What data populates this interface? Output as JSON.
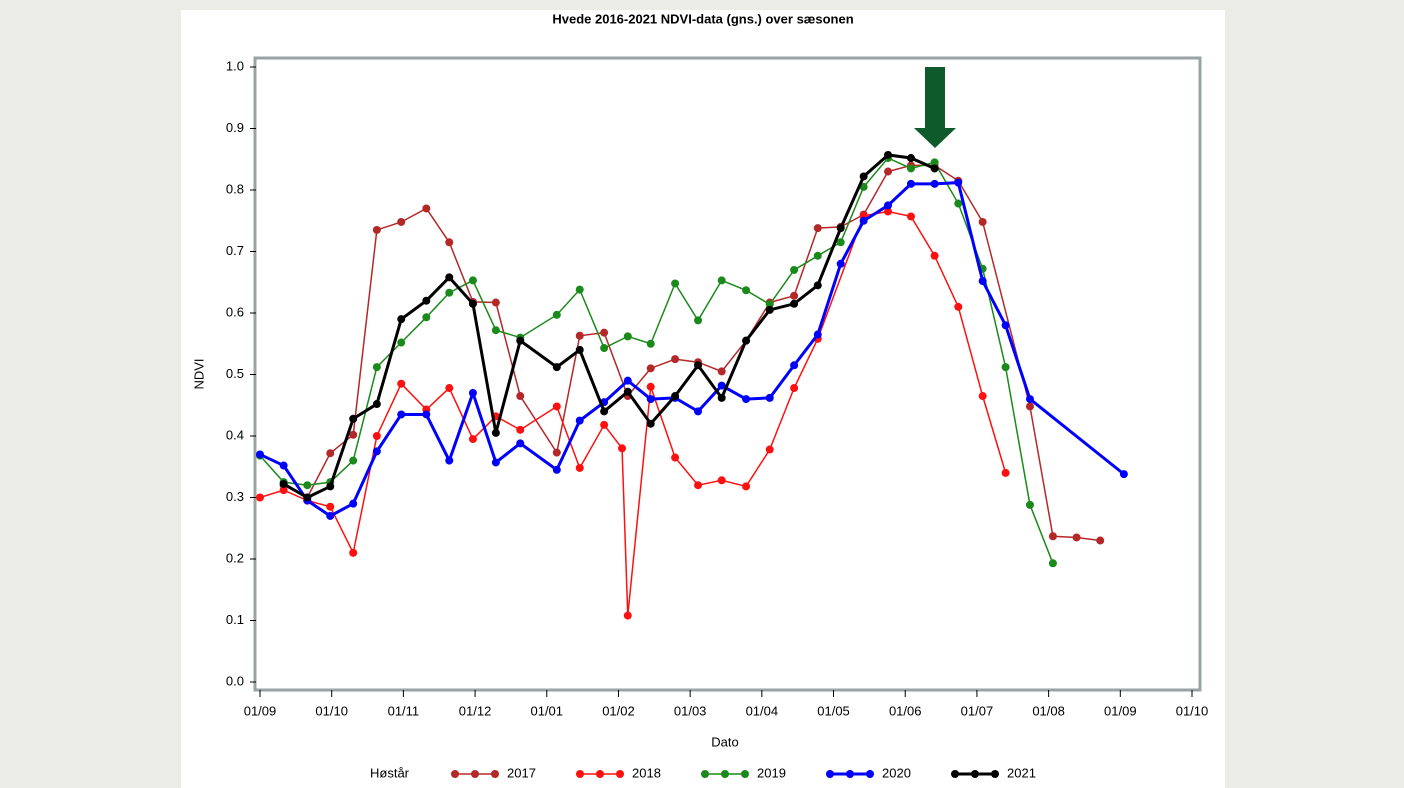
{
  "chart_data": {
    "type": "line",
    "title": "Hvede 2016-2021 NDVI-data (gns.) over sæsonen",
    "x_label": "Dato",
    "y_label": "NDVI",
    "legend_title": "Høstår",
    "xlim": [
      0,
      13
    ],
    "xticks": [
      {
        "value": 0,
        "label": "01/09"
      },
      {
        "value": 1,
        "label": "01/10"
      },
      {
        "value": 2,
        "label": "01/11"
      },
      {
        "value": 3,
        "label": "01/12"
      },
      {
        "value": 4,
        "label": "01/01"
      },
      {
        "value": 5,
        "label": "01/02"
      },
      {
        "value": 6,
        "label": "01/03"
      },
      {
        "value": 7,
        "label": "01/04"
      },
      {
        "value": 8,
        "label": "01/05"
      },
      {
        "value": 9,
        "label": "01/06"
      },
      {
        "value": 10,
        "label": "01/07"
      },
      {
        "value": 11,
        "label": "01/08"
      },
      {
        "value": 12,
        "label": "01/09"
      },
      {
        "value": 13,
        "label": "01/10"
      }
    ],
    "ylim": [
      0,
      1
    ],
    "yticks": [
      {
        "value": 0,
        "label": "0.0"
      },
      {
        "value": 0.1,
        "label": "0.1"
      },
      {
        "value": 0.2,
        "label": "0.2"
      },
      {
        "value": 0.3,
        "label": "0.3"
      },
      {
        "value": 0.4,
        "label": "0.4"
      },
      {
        "value": 0.5,
        "label": "0.5"
      },
      {
        "value": 0.6,
        "label": "0.6"
      },
      {
        "value": 0.7,
        "label": "0.7"
      },
      {
        "value": 0.8,
        "label": "0.8"
      },
      {
        "value": 0.9,
        "label": "0.9"
      },
      {
        "value": 1,
        "label": "1.0"
      }
    ],
    "series": [
      {
        "name": "2017",
        "color": "#b52828",
        "width": 1.5,
        "x": [
          0.33,
          0.66,
          0.98,
          1.3,
          1.63,
          1.97,
          2.32,
          2.64,
          2.97,
          3.29,
          3.63,
          4.14,
          4.46,
          4.8,
          5.13,
          5.45,
          5.79,
          6.11,
          6.44,
          6.78,
          7.11,
          7.45,
          7.78,
          8.1,
          8.42,
          8.76,
          9.08,
          9.41,
          9.74,
          10.08,
          10.74,
          11.06,
          11.39,
          11.72
        ],
        "values": [
          0.32,
          0.3,
          0.372,
          0.402,
          0.735,
          0.748,
          0.77,
          0.715,
          0.618,
          0.617,
          0.465,
          0.373,
          0.563,
          0.568,
          0.465,
          0.51,
          0.525,
          0.52,
          0.505,
          0.555,
          0.617,
          0.628,
          0.738,
          0.74,
          0.76,
          0.83,
          0.84,
          0.84,
          0.815,
          0.748,
          0.448,
          0.237,
          0.235,
          0.23
        ]
      },
      {
        "name": "2018",
        "color": "#ff1010",
        "width": 1.5,
        "x": [
          0,
          0.33,
          0.66,
          0.98,
          1.3,
          1.63,
          1.97,
          2.32,
          2.64,
          2.97,
          3.29,
          3.63,
          4.14,
          4.46,
          4.8,
          5.05,
          5.13,
          5.45,
          5.79,
          6.11,
          6.44,
          6.78,
          7.11,
          7.45,
          7.78,
          8.42,
          8.76,
          9.08,
          9.41,
          9.74,
          10.08,
          10.4
        ],
        "values": [
          0.3,
          0.312,
          0.295,
          0.285,
          0.21,
          0.4,
          0.485,
          0.443,
          0.478,
          0.395,
          0.432,
          0.41,
          0.448,
          0.348,
          0.418,
          0.38,
          0.108,
          0.48,
          0.365,
          0.32,
          0.328,
          0.318,
          0.378,
          0.478,
          0.558,
          0.758,
          0.765,
          0.757,
          0.693,
          0.61,
          0.465,
          0.34
        ]
      },
      {
        "name": "2019",
        "color": "#1a8a1a",
        "width": 1.5,
        "x": [
          0,
          0.33,
          0.66,
          0.98,
          1.3,
          1.63,
          1.97,
          2.32,
          2.64,
          2.97,
          3.29,
          3.63,
          4.14,
          4.46,
          4.8,
          5.13,
          5.45,
          5.79,
          6.11,
          6.44,
          6.78,
          7.11,
          7.45,
          7.78,
          8.1,
          8.42,
          8.76,
          9.08,
          9.41,
          9.74,
          10.08,
          10.4,
          10.74,
          11.06
        ],
        "values": [
          0.368,
          0.325,
          0.32,
          0.325,
          0.36,
          0.512,
          0.552,
          0.593,
          0.633,
          0.653,
          0.572,
          0.56,
          0.597,
          0.638,
          0.543,
          0.562,
          0.55,
          0.648,
          0.588,
          0.653,
          0.637,
          0.614,
          0.67,
          0.693,
          0.715,
          0.805,
          0.852,
          0.835,
          0.845,
          0.778,
          0.672,
          0.512,
          0.288,
          0.193
        ]
      },
      {
        "name": "2020",
        "color": "#0000ff",
        "width": 3,
        "x": [
          0,
          0.33,
          0.66,
          0.98,
          1.3,
          1.63,
          1.97,
          2.32,
          2.64,
          2.97,
          3.29,
          3.63,
          4.14,
          4.46,
          4.8,
          5.13,
          5.45,
          5.79,
          6.11,
          6.44,
          6.78,
          7.11,
          7.45,
          7.78,
          8.1,
          8.42,
          8.76,
          9.08,
          9.41,
          9.74,
          10.08,
          10.4,
          10.74,
          12.05
        ],
        "values": [
          0.37,
          0.352,
          0.295,
          0.27,
          0.29,
          0.375,
          0.435,
          0.435,
          0.36,
          0.47,
          0.357,
          0.388,
          0.345,
          0.425,
          0.455,
          0.49,
          0.46,
          0.462,
          0.44,
          0.482,
          0.46,
          0.462,
          0.515,
          0.565,
          0.68,
          0.75,
          0.775,
          0.81,
          0.81,
          0.812,
          0.652,
          0.58,
          0.46,
          0.338
        ]
      },
      {
        "name": "2021",
        "color": "#000000",
        "width": 3,
        "x": [
          0.33,
          0.66,
          0.98,
          1.3,
          1.63,
          1.97,
          2.32,
          2.64,
          2.97,
          3.29,
          3.63,
          4.14,
          4.46,
          4.8,
          5.13,
          5.45,
          5.79,
          6.11,
          6.44,
          6.78,
          7.11,
          7.45,
          7.78,
          8.1,
          8.42,
          8.76,
          9.08,
          9.41
        ],
        "values": [
          0.322,
          0.3,
          0.318,
          0.428,
          0.452,
          0.59,
          0.62,
          0.658,
          0.615,
          0.405,
          0.555,
          0.512,
          0.54,
          0.44,
          0.472,
          0.42,
          0.465,
          0.515,
          0.462,
          0.555,
          0.605,
          0.615,
          0.645,
          0.738,
          0.822,
          0.857,
          0.852,
          0.835
        ]
      }
    ]
  }
}
